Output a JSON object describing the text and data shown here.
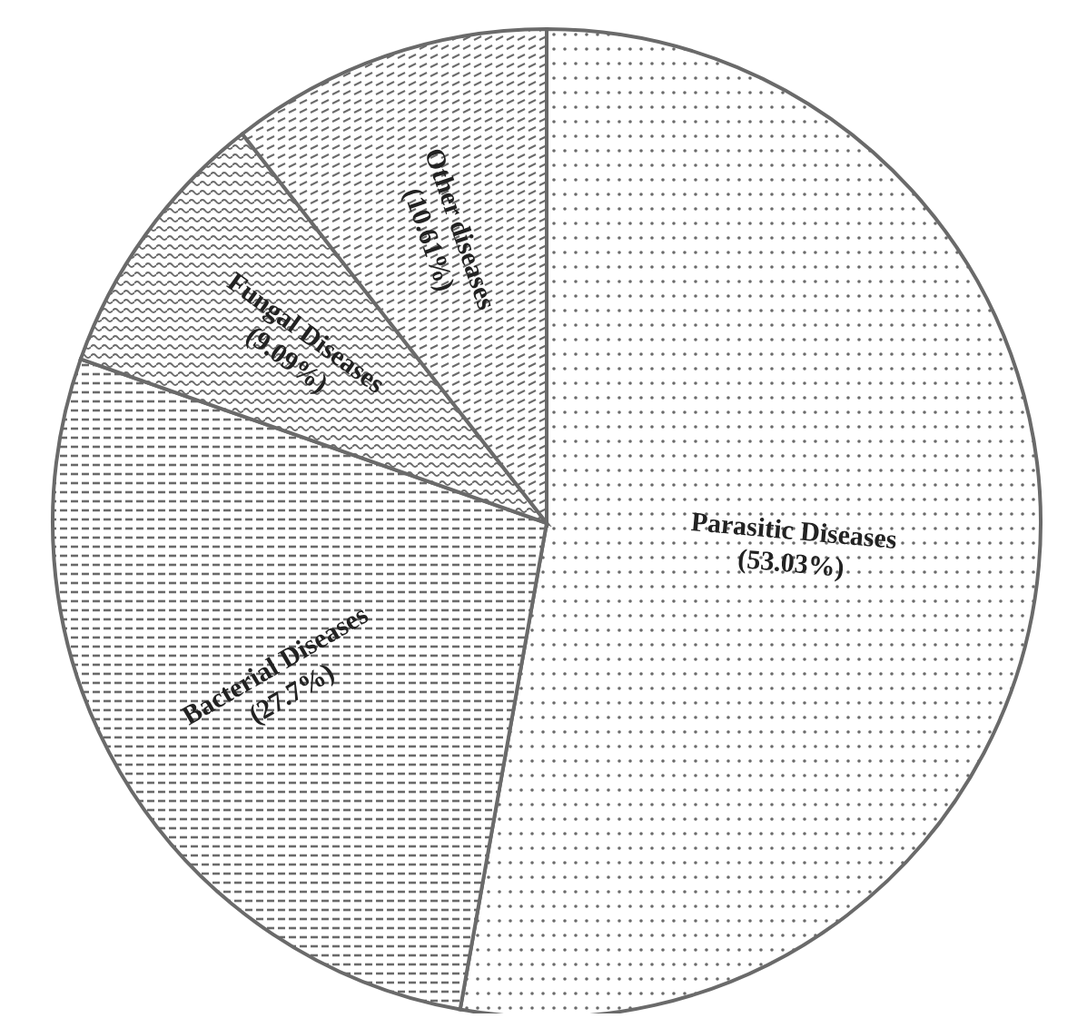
{
  "chart_data": {
    "type": "pie",
    "categories": [
      "Parasitic Diseases",
      "Bacterial Diseases",
      "Fungal Diseases",
      "Other diseases"
    ],
    "values": [
      53.03,
      27.7,
      9.09,
      10.61
    ],
    "value_labels": [
      "(53.03%)",
      "(27.7%)",
      "(9.09%)",
      "(10.61%)"
    ],
    "colors": [
      "#6a6a6a",
      "#6a6a6a",
      "#6a6a6a",
      "#6a6a6a"
    ]
  }
}
